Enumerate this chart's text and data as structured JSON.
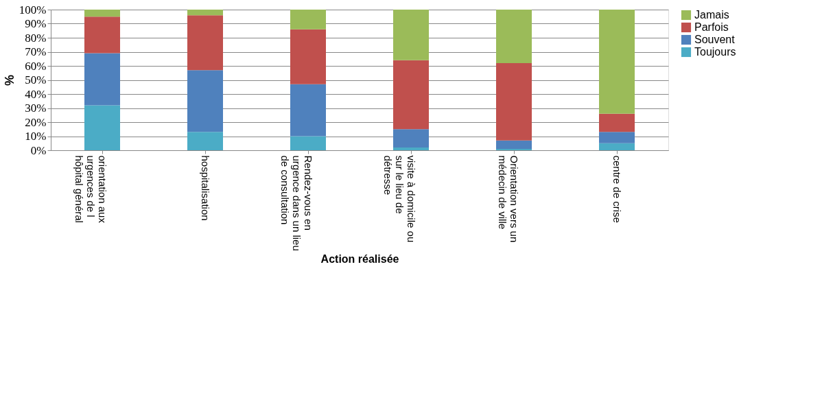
{
  "chart_data": {
    "type": "bar",
    "stacked": true,
    "xlabel": "Action réalisée",
    "ylabel": "%",
    "categories": [
      "orientation aux urgences de l hôpital général",
      "hospitalisation",
      "Rendez-vous en urgence dans un lieu de consultation",
      "visite à domicile ou sur le lieu de détresse",
      "Orientation vers un médecin de ville",
      "centre de crise"
    ],
    "series": [
      {
        "name": "Toujours",
        "color": "#4bacc6",
        "values": [
          32,
          13,
          10,
          2,
          1,
          5
        ]
      },
      {
        "name": "Souvent",
        "color": "#4f81bd",
        "values": [
          37,
          44,
          37,
          13,
          6,
          8
        ]
      },
      {
        "name": "Parfois",
        "color": "#c0504d",
        "values": [
          26,
          39,
          39,
          49,
          55,
          13
        ]
      },
      {
        "name": "Jamais",
        "color": "#9bbb59",
        "values": [
          5,
          4,
          14,
          36,
          38,
          74
        ]
      }
    ],
    "ylim": [
      0,
      100
    ],
    "yticks": [
      {
        "value": 0,
        "label": "0%"
      },
      {
        "value": 10,
        "label": "10%"
      },
      {
        "value": 20,
        "label": "20%"
      },
      {
        "value": 30,
        "label": "30%"
      },
      {
        "value": 40,
        "label": "40%"
      },
      {
        "value": 50,
        "label": "50%"
      },
      {
        "value": 60,
        "label": "60%"
      },
      {
        "value": 70,
        "label": "70%"
      },
      {
        "value": 80,
        "label": "80%"
      },
      {
        "value": 90,
        "label": "90%"
      },
      {
        "value": 100,
        "label": "100%"
      }
    ],
    "grid": "y",
    "legend": "right"
  }
}
